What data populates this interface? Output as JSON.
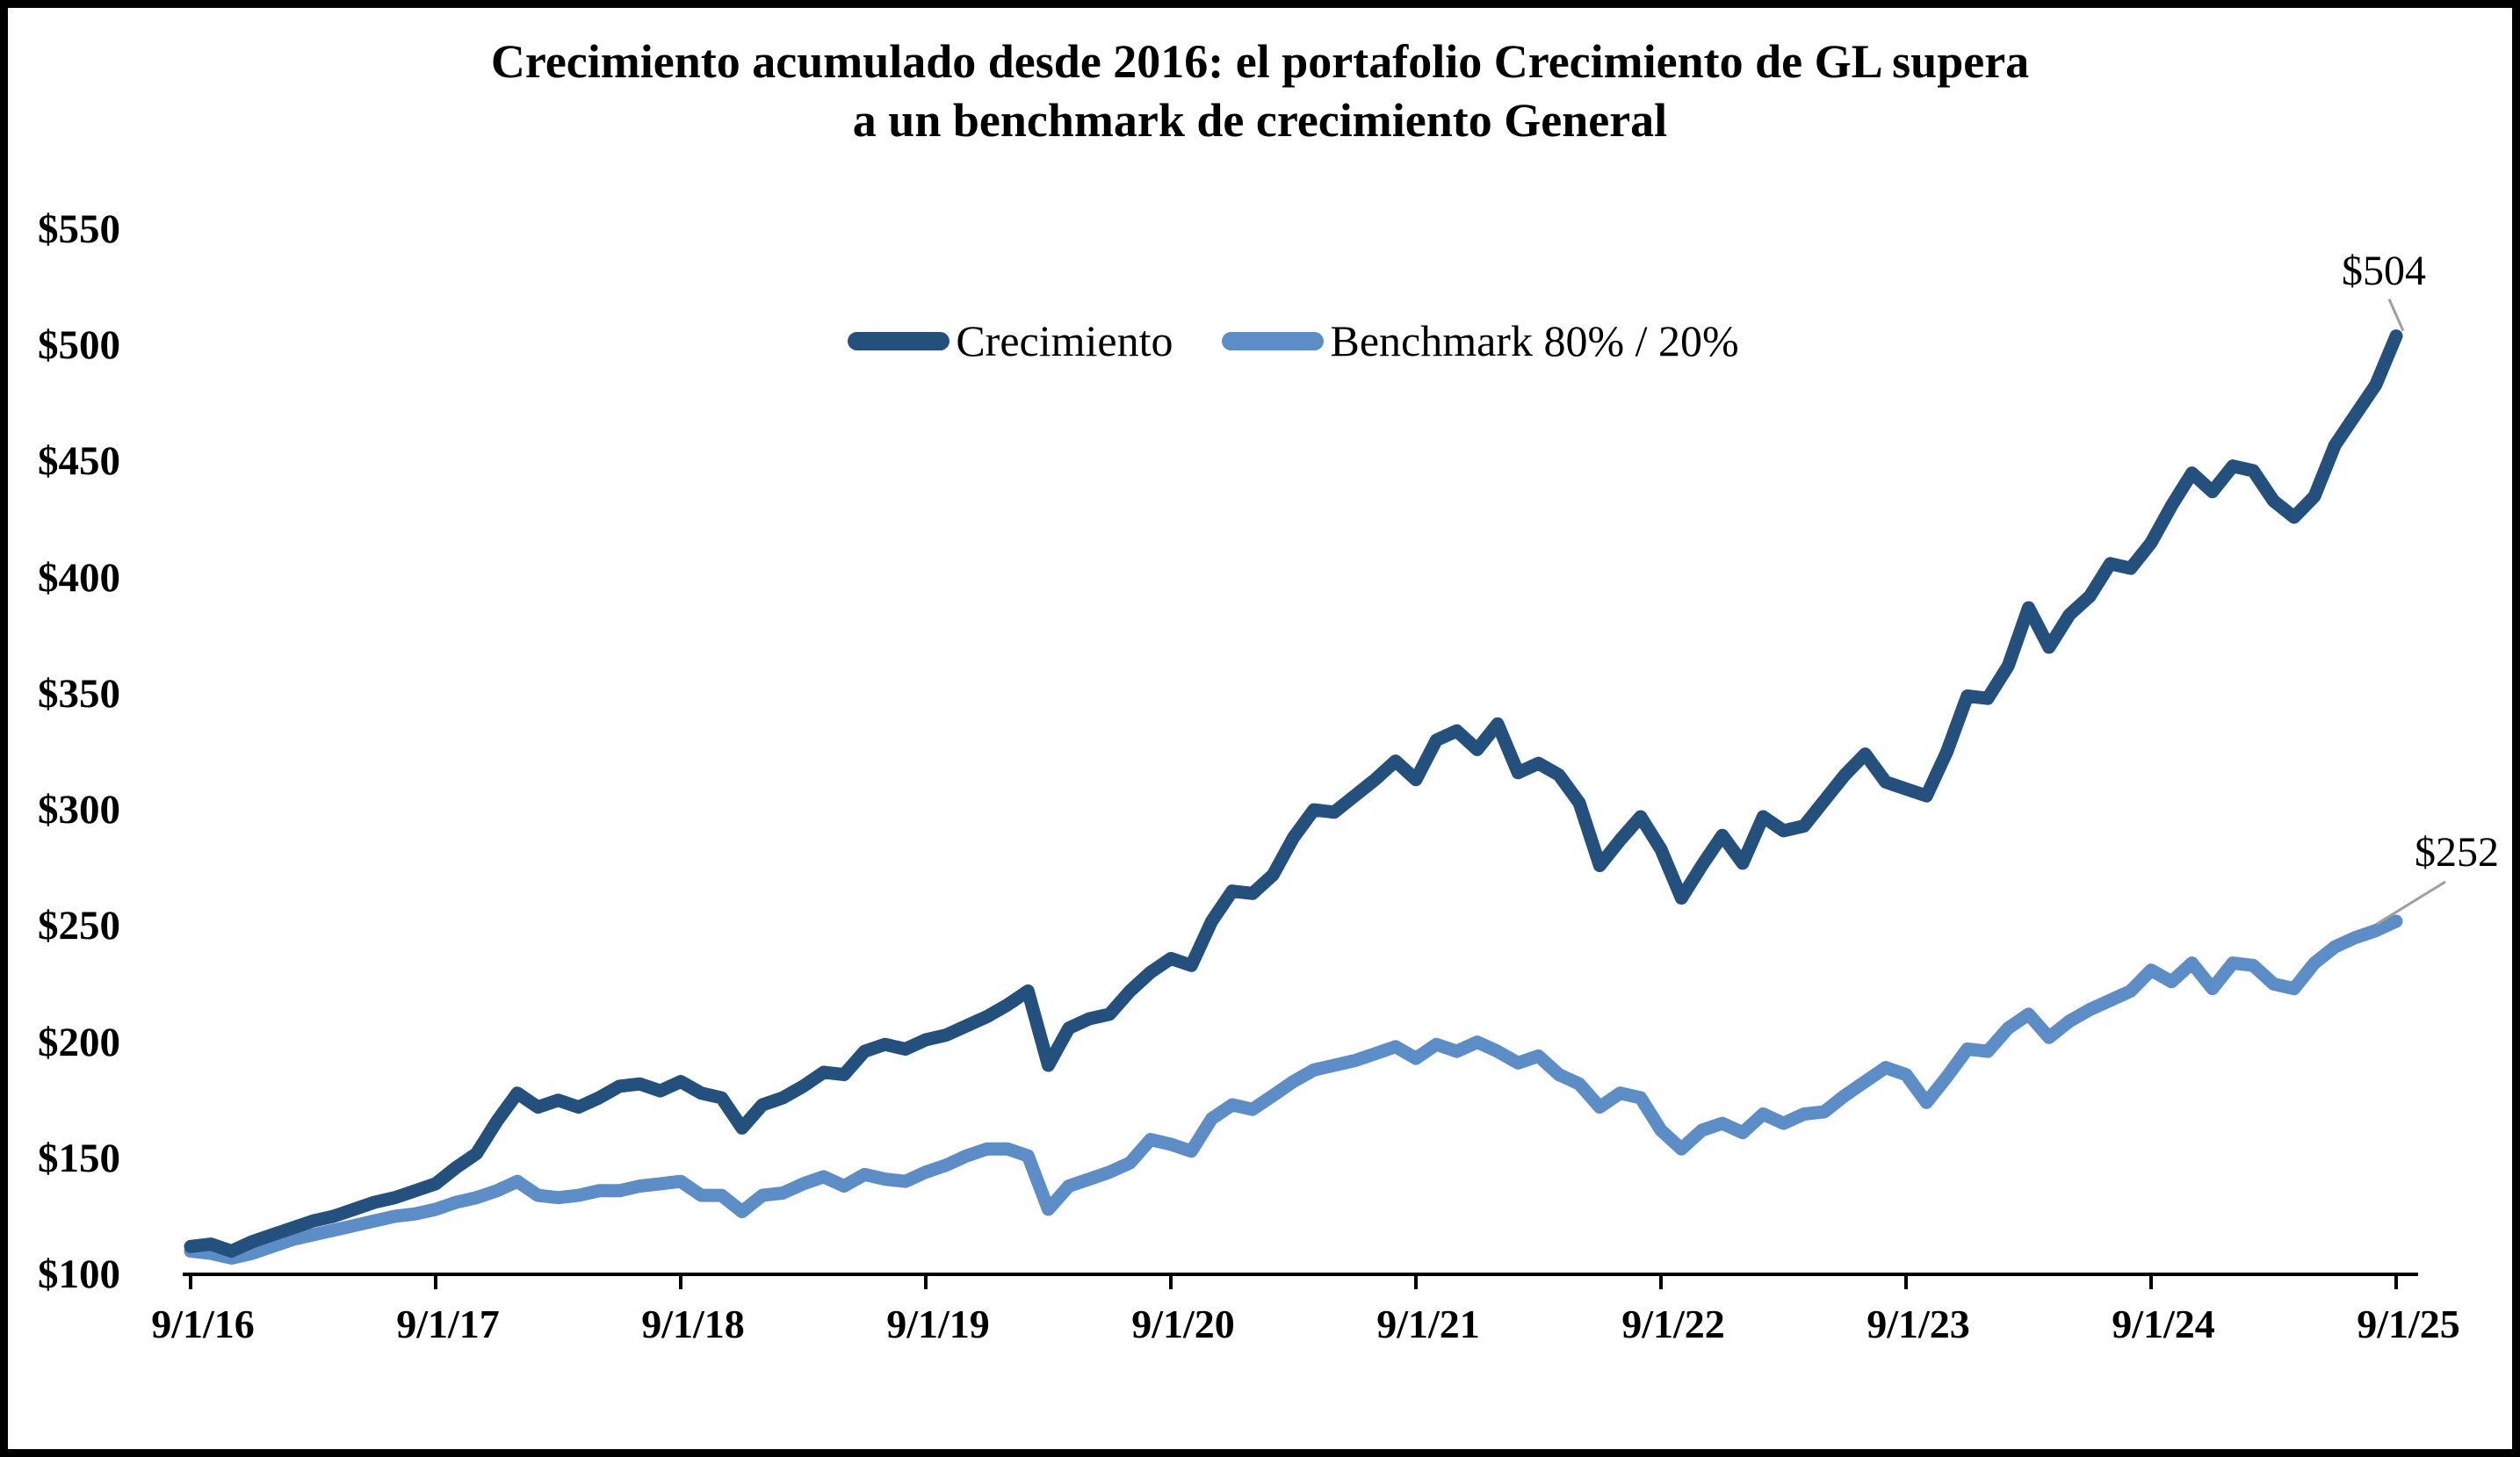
{
  "page": {
    "background": "#FFFFFF",
    "frame_border_color": "#000000"
  },
  "chart_data": {
    "type": "line",
    "title_line1": "Crecimiento acumulado desde 2016: el portafolio Crecimiento de GL supera",
    "title_line2": "a un benchmark de crecimiento General",
    "grid": false,
    "legend_position": "top-center",
    "axis_color": "#000000",
    "leader_line_color": "#A0A0A0",
    "ylim": [
      100,
      550
    ],
    "y_tick_step": 50,
    "y_tick_labels": [
      "$100",
      "$150",
      "$200",
      "$250",
      "$300",
      "$350",
      "$400",
      "$450",
      "$500",
      "$550"
    ],
    "x_tick_labels": [
      "9/1/16",
      "9/1/17",
      "9/1/18",
      "9/1/19",
      "9/1/20",
      "9/1/21",
      "9/1/22",
      "9/1/23",
      "9/1/24",
      "9/1/25"
    ],
    "x_frequency": "monthly",
    "points_per_year": 12,
    "series": [
      {
        "name": "Benchmark 80% / 20%",
        "color": "#5C8DC6",
        "end_label": "$252",
        "end_value": 252,
        "values": [
          110,
          109,
          107,
          109,
          112,
          115,
          117,
          119,
          121,
          123,
          125,
          126,
          128,
          131,
          133,
          136,
          140,
          134,
          133,
          134,
          136,
          136,
          138,
          139,
          140,
          134,
          134,
          127,
          134,
          135,
          139,
          142,
          138,
          143,
          141,
          140,
          144,
          147,
          151,
          154,
          154,
          151,
          128,
          138,
          141,
          144,
          148,
          158,
          156,
          153,
          167,
          173,
          171,
          177,
          183,
          188,
          190,
          192,
          195,
          198,
          193,
          199,
          196,
          200,
          196,
          191,
          194,
          186,
          182,
          172,
          178,
          176,
          162,
          154,
          162,
          165,
          161,
          169,
          165,
          169,
          170,
          177,
          183,
          189,
          186,
          174,
          185,
          197,
          196,
          206,
          212,
          202,
          209,
          214,
          218,
          222,
          231,
          226,
          234,
          223,
          234,
          233,
          225,
          223,
          234,
          241,
          245,
          248,
          252
        ]
      },
      {
        "name": "Crecimiento",
        "color": "#24507E",
        "end_label": "$504",
        "end_value": 504,
        "values": [
          112,
          113,
          110,
          114,
          117,
          120,
          123,
          125,
          128,
          131,
          133,
          136,
          139,
          146,
          152,
          166,
          178,
          172,
          175,
          172,
          176,
          181,
          182,
          179,
          183,
          178,
          176,
          163,
          173,
          176,
          181,
          187,
          186,
          196,
          199,
          197,
          201,
          203,
          207,
          211,
          216,
          222,
          190,
          206,
          210,
          212,
          222,
          230,
          236,
          233,
          252,
          265,
          264,
          272,
          288,
          300,
          299,
          306,
          313,
          321,
          313,
          330,
          334,
          326,
          337,
          316,
          320,
          315,
          303,
          276,
          287,
          297,
          283,
          262,
          276,
          289,
          277,
          297,
          291,
          293,
          304,
          315,
          324,
          312,
          309,
          306,
          325,
          349,
          348,
          362,
          387,
          370,
          384,
          392,
          406,
          404,
          415,
          431,
          445,
          437,
          448,
          446,
          433,
          426,
          435,
          457,
          470,
          483,
          504
        ]
      }
    ],
    "legend_order": [
      "Crecimiento",
      "Benchmark 80% / 20%"
    ]
  }
}
